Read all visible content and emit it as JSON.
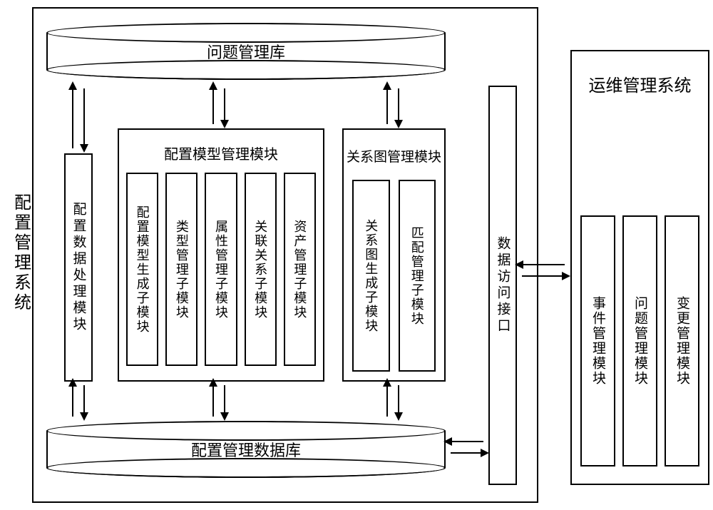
{
  "left_system": {
    "title": "配置管理系统",
    "top_db": "问题管理库",
    "bottom_db": "配置管理数据库",
    "data_processing": "配置数据处理模块",
    "config_model_group": {
      "title": "配置模型管理模块",
      "subs": [
        "配置模型生成子模块",
        "类型管理子模块",
        "属性管理子模块",
        "关联关系子模块",
        "资产管理子模块"
      ]
    },
    "relation_graph_group": {
      "title": "关系图管理模块",
      "subs": [
        "关系图生成子模块",
        "匹配管理子模块"
      ]
    },
    "data_interface": "数据访问接口"
  },
  "right_system": {
    "title": "运维管理系统",
    "subs": [
      "事件管理模块",
      "问题管理模块",
      "变更管理模块"
    ]
  },
  "style": {
    "stroke": "#000000",
    "bg": "#ffffff",
    "font_main": 22,
    "font_sub": 18,
    "font_vlabel": 22
  }
}
